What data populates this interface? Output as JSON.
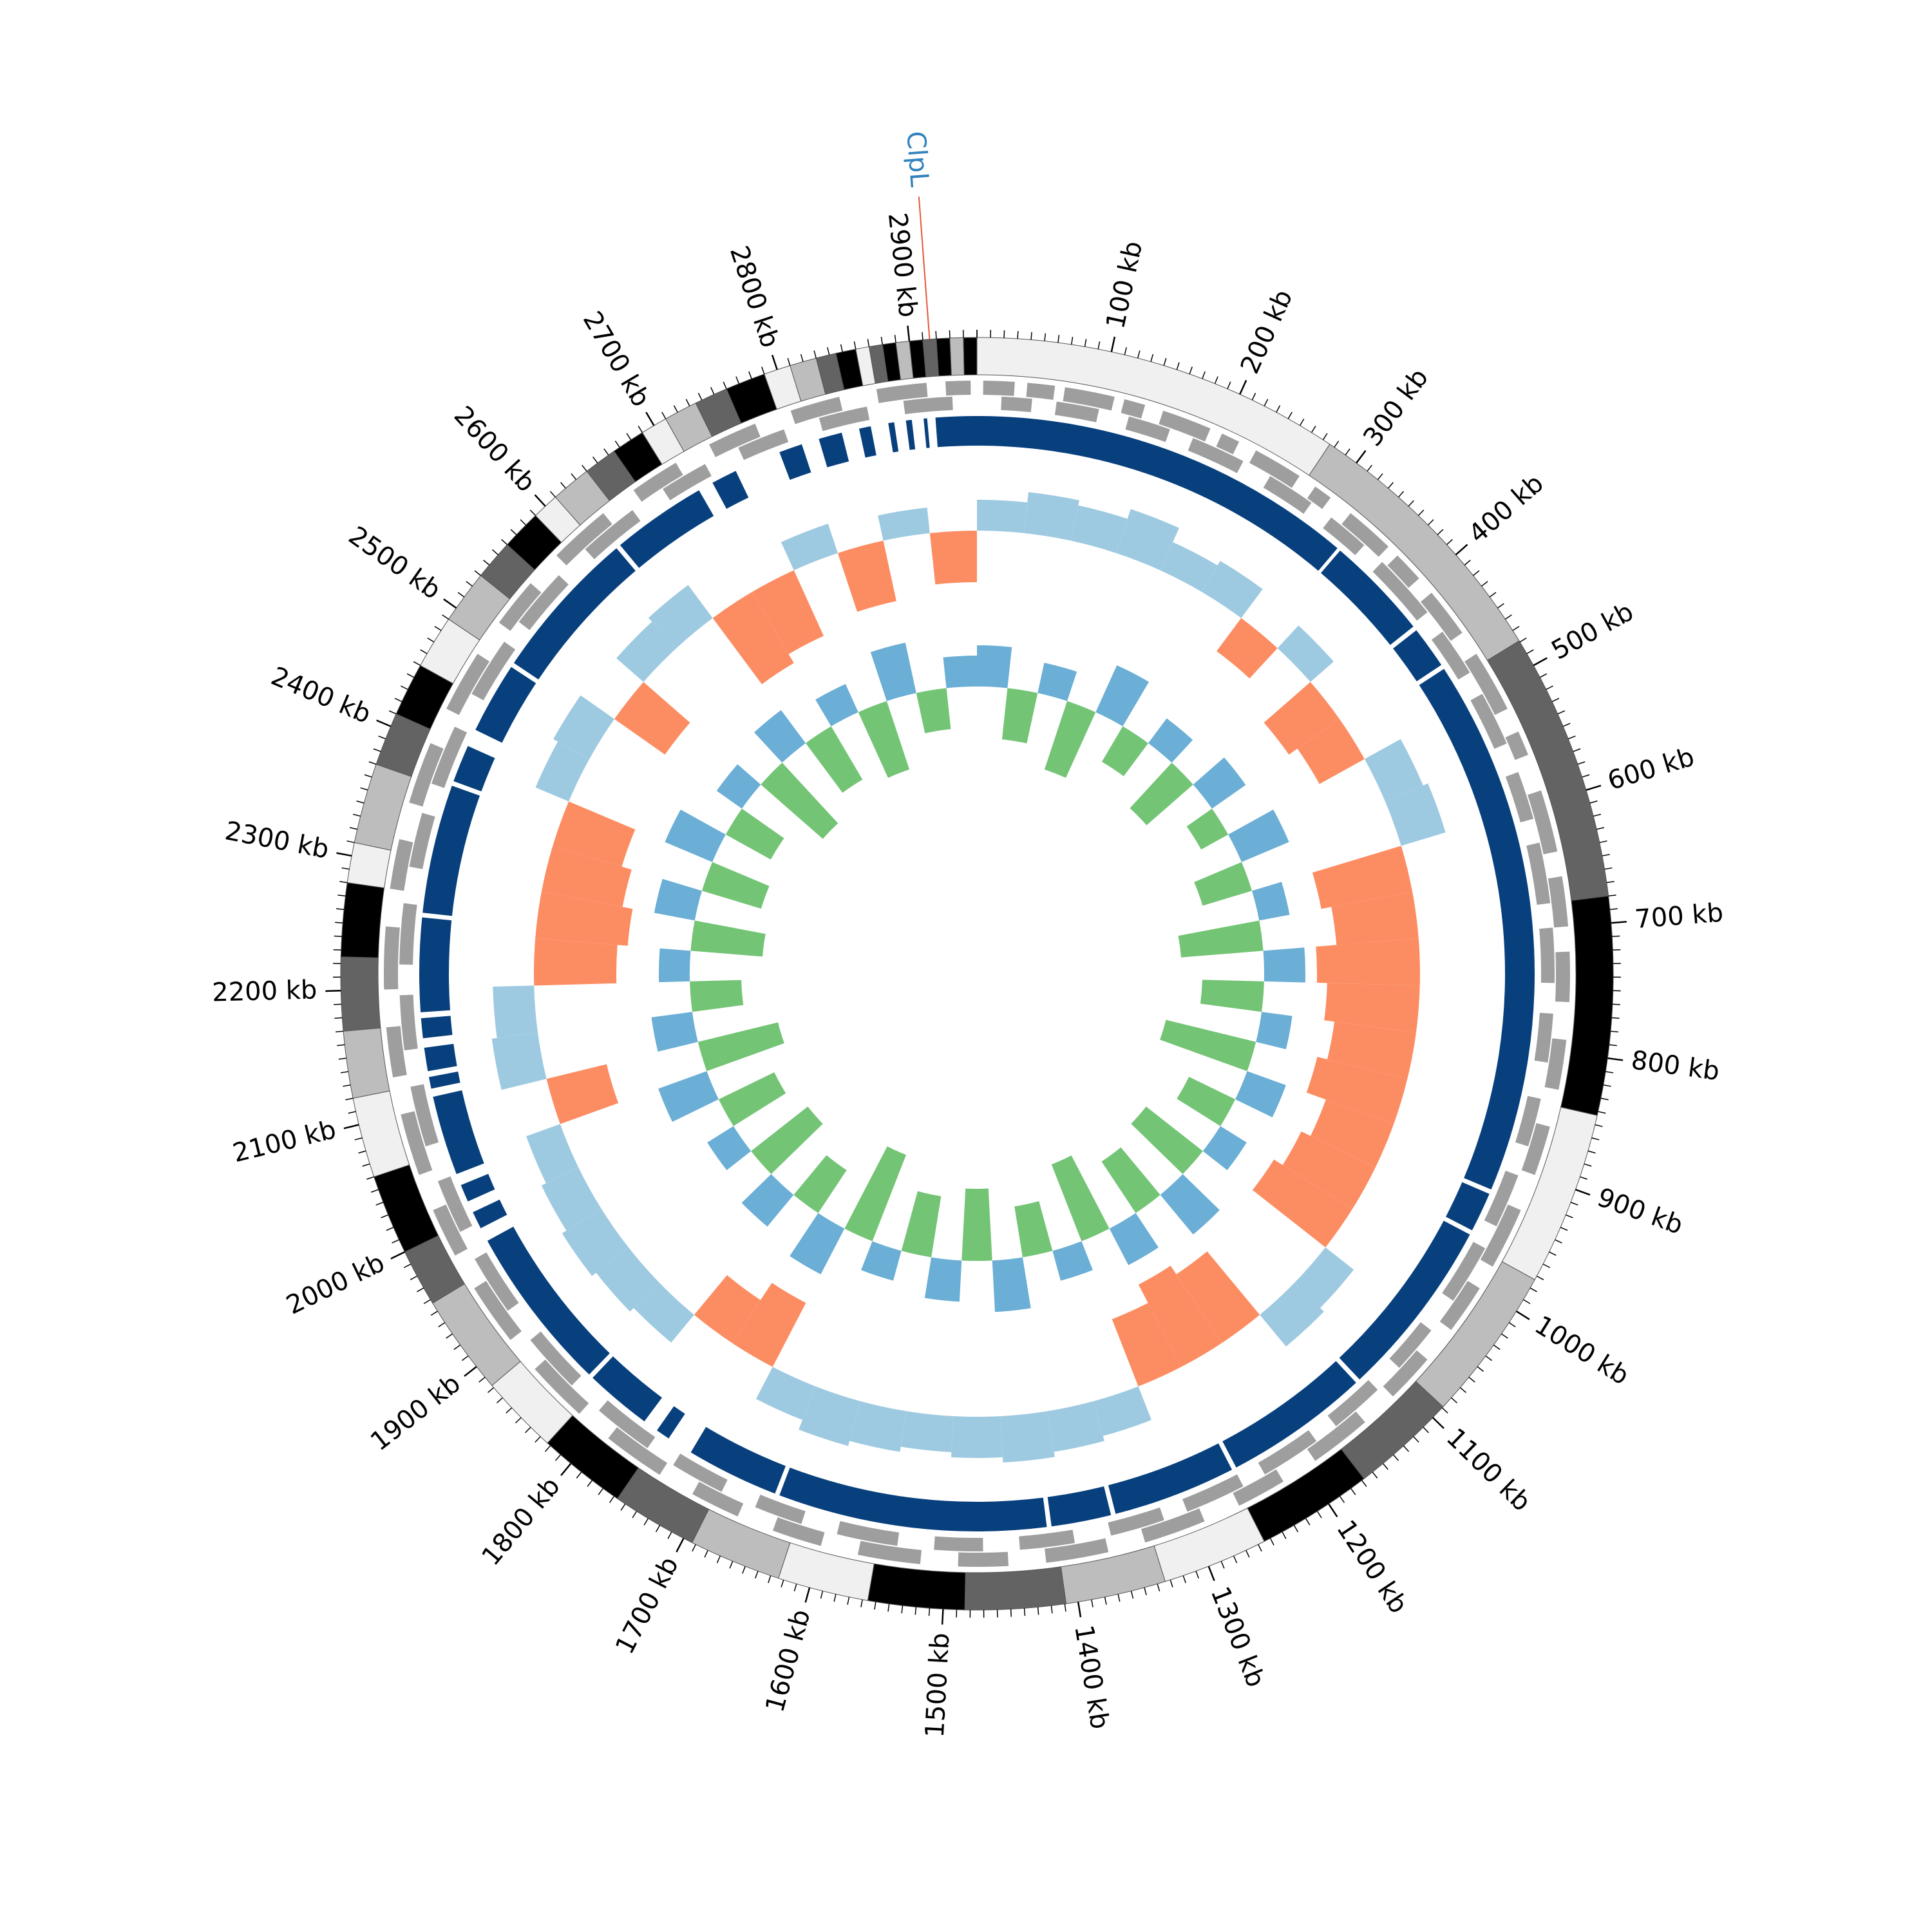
{
  "chart_data": {
    "type": "circos",
    "xlim": [
      0,
      2950
    ],
    "xticks": [
      {
        "value": 100,
        "label": "100 kb"
      },
      {
        "value": 200,
        "label": "200 kb"
      },
      {
        "value": 300,
        "label": "300 kb"
      },
      {
        "value": 400,
        "label": "400 kb"
      },
      {
        "value": 500,
        "label": "500 kb"
      },
      {
        "value": 600,
        "label": "600 kb"
      },
      {
        "value": 700,
        "label": "700 kb"
      },
      {
        "value": 800,
        "label": "800 kb"
      },
      {
        "value": 900,
        "label": "900 kb"
      },
      {
        "value": 1000,
        "label": "1000 kb"
      },
      {
        "value": 1100,
        "label": "1100 kb"
      },
      {
        "value": 1200,
        "label": "1200 kb"
      },
      {
        "value": 1300,
        "label": "1300 kb"
      },
      {
        "value": 1400,
        "label": "1400 kb"
      },
      {
        "value": 1500,
        "label": "1500 kb"
      },
      {
        "value": 1600,
        "label": "1600 kb"
      },
      {
        "value": 1700,
        "label": "1700 kb"
      },
      {
        "value": 1800,
        "label": "1800 kb"
      },
      {
        "value": 1900,
        "label": "1900 kb"
      },
      {
        "value": 2000,
        "label": "2000 kb"
      },
      {
        "value": 2100,
        "label": "2100 kb"
      },
      {
        "value": 2200,
        "label": "2200 kb"
      },
      {
        "value": 2300,
        "label": "2300 kb"
      },
      {
        "value": 2400,
        "label": "2400 kb"
      },
      {
        "value": 2500,
        "label": "2500 kb"
      },
      {
        "value": 2600,
        "label": "2600 kb"
      },
      {
        "value": 2700,
        "label": "2700 kb"
      },
      {
        "value": 2800,
        "label": "2800 kb"
      },
      {
        "value": 2900,
        "label": "2900 kb"
      }
    ],
    "minor_tick_step": 10,
    "ideogram": {
      "bands": [
        {
          "start": 0,
          "end": 276,
          "color": "#f0f0f0"
        },
        {
          "start": 276,
          "end": 479,
          "color": "#bdbdbd"
        },
        {
          "start": 479,
          "end": 680,
          "color": "#636363"
        },
        {
          "start": 680,
          "end": 843,
          "color": "#000000"
        },
        {
          "start": 843,
          "end": 973,
          "color": "#f0f0f0"
        },
        {
          "start": 973,
          "end": 1089,
          "color": "#bdbdbd"
        },
        {
          "start": 1089,
          "end": 1168,
          "color": "#636363"
        },
        {
          "start": 1168,
          "end": 1255,
          "color": "#000000"
        },
        {
          "start": 1255,
          "end": 1334,
          "color": "#f0f0f0"
        },
        {
          "start": 1334,
          "end": 1409,
          "color": "#bdbdbd"
        },
        {
          "start": 1409,
          "end": 1484,
          "color": "#636363"
        },
        {
          "start": 1484,
          "end": 1556,
          "color": "#000000"
        },
        {
          "start": 1556,
          "end": 1624,
          "color": "#f0f0f0"
        },
        {
          "start": 1624,
          "end": 1693,
          "color": "#bdbdbd"
        },
        {
          "start": 1693,
          "end": 1757,
          "color": "#636363"
        },
        {
          "start": 1757,
          "end": 1823,
          "color": "#000000"
        },
        {
          "start": 1823,
          "end": 1882,
          "color": "#f0f0f0"
        },
        {
          "start": 1882,
          "end": 1957,
          "color": "#bdbdbd"
        },
        {
          "start": 1957,
          "end": 2000,
          "color": "#636363"
        },
        {
          "start": 2000,
          "end": 2060,
          "color": "#000000"
        },
        {
          "start": 2060,
          "end": 2120,
          "color": "#f0f0f0"
        },
        {
          "start": 2120,
          "end": 2170,
          "color": "#bdbdbd"
        },
        {
          "start": 2170,
          "end": 2225,
          "color": "#636363"
        },
        {
          "start": 2225,
          "end": 2280,
          "color": "#000000"
        },
        {
          "start": 2280,
          "end": 2310,
          "color": "#f0f0f0"
        },
        {
          "start": 2310,
          "end": 2370,
          "color": "#bdbdbd"
        },
        {
          "start": 2370,
          "end": 2410,
          "color": "#636363"
        },
        {
          "start": 2410,
          "end": 2450,
          "color": "#000000"
        },
        {
          "start": 2450,
          "end": 2490,
          "color": "#f0f0f0"
        },
        {
          "start": 2490,
          "end": 2530,
          "color": "#bdbdbd"
        },
        {
          "start": 2530,
          "end": 2560,
          "color": "#636363"
        },
        {
          "start": 2560,
          "end": 2590,
          "color": "#000000"
        },
        {
          "start": 2590,
          "end": 2610,
          "color": "#f0f0f0"
        },
        {
          "start": 2610,
          "end": 2640,
          "color": "#bdbdbd"
        },
        {
          "start": 2640,
          "end": 2665,
          "color": "#636363"
        },
        {
          "start": 2665,
          "end": 2690,
          "color": "#000000"
        },
        {
          "start": 2690,
          "end": 2710,
          "color": "#f0f0f0"
        },
        {
          "start": 2710,
          "end": 2735,
          "color": "#bdbdbd"
        },
        {
          "start": 2735,
          "end": 2760,
          "color": "#636363"
        },
        {
          "start": 2760,
          "end": 2790,
          "color": "#000000"
        },
        {
          "start": 2790,
          "end": 2810,
          "color": "#f0f0f0"
        },
        {
          "start": 2810,
          "end": 2830,
          "color": "#bdbdbd"
        },
        {
          "start": 2830,
          "end": 2845,
          "color": "#636363"
        },
        {
          "start": 2845,
          "end": 2860,
          "color": "#000000"
        },
        {
          "start": 2860,
          "end": 2870,
          "color": "#f0f0f0"
        },
        {
          "start": 2870,
          "end": 2880,
          "color": "#636363"
        },
        {
          "start": 2880,
          "end": 2890,
          "color": "#000000"
        },
        {
          "start": 2890,
          "end": 2900,
          "color": "#bdbdbd"
        },
        {
          "start": 2900,
          "end": 2910,
          "color": "#000000"
        },
        {
          "start": 2910,
          "end": 2920,
          "color": "#636363"
        },
        {
          "start": 2920,
          "end": 2930,
          "color": "#000000"
        },
        {
          "start": 2930,
          "end": 2940,
          "color": "#bdbdbd"
        },
        {
          "start": 2940,
          "end": 2950,
          "color": "#000000"
        }
      ]
    },
    "genes": {
      "color": "#9e9e9e",
      "plus": [
        [
          5,
          30
        ],
        [
          40,
          62
        ],
        [
          70,
          110
        ],
        [
          118,
          135
        ],
        [
          150,
          190
        ],
        [
          200,
          215
        ],
        [
          230,
          270
        ],
        [
          285,
          300
        ],
        [
          320,
          360
        ],
        [
          370,
          395
        ],
        [
          410,
          450
        ],
        [
          470,
          520
        ],
        [
          540,
          560
        ],
        [
          590,
          640
        ],
        [
          660,
          700
        ],
        [
          720,
          760
        ],
        [
          790,
          830
        ],
        [
          860,
          900
        ],
        [
          930,
          980
        ],
        [
          1000,
          1040
        ],
        [
          1070,
          1110
        ],
        [
          1140,
          1190
        ],
        [
          1220,
          1260
        ],
        [
          1290,
          1340
        ],
        [
          1370,
          1420
        ],
        [
          1450,
          1490
        ],
        [
          1520,
          1570
        ],
        [
          1600,
          1640
        ],
        [
          1670,
          1710
        ],
        [
          1740,
          1790
        ],
        [
          1820,
          1870
        ],
        [
          1900,
          1950
        ],
        [
          1980,
          2020
        ],
        [
          2050,
          2100
        ],
        [
          2130,
          2170
        ],
        [
          2200,
          2250
        ],
        [
          2280,
          2320
        ],
        [
          2350,
          2400
        ],
        [
          2430,
          2480
        ],
        [
          2510,
          2550
        ],
        [
          2580,
          2630
        ],
        [
          2660,
          2700
        ],
        [
          2730,
          2770
        ],
        [
          2800,
          2840
        ],
        [
          2870,
          2910
        ],
        [
          2925,
          2945
        ]
      ],
      "minus": [
        [
          20,
          45
        ],
        [
          65,
          100
        ],
        [
          125,
          160
        ],
        [
          180,
          225
        ],
        [
          250,
          290
        ],
        [
          310,
          345
        ],
        [
          365,
          420
        ],
        [
          440,
          480
        ],
        [
          500,
          545
        ],
        [
          570,
          610
        ],
        [
          630,
          680
        ],
        [
          700,
          745
        ],
        [
          770,
          810
        ],
        [
          840,
          880
        ],
        [
          905,
          950
        ],
        [
          970,
          1020
        ],
        [
          1050,
          1090
        ],
        [
          1115,
          1160
        ],
        [
          1180,
          1230
        ],
        [
          1250,
          1300
        ],
        [
          1320,
          1365
        ],
        [
          1395,
          1440
        ],
        [
          1470,
          1510
        ],
        [
          1540,
          1590
        ],
        [
          1620,
          1660
        ],
        [
          1690,
          1735
        ],
        [
          1760,
          1810
        ],
        [
          1840,
          1890
        ],
        [
          1920,
          1970
        ],
        [
          1995,
          2040
        ],
        [
          2070,
          2120
        ],
        [
          2150,
          2195
        ],
        [
          2220,
          2270
        ],
        [
          2300,
          2345
        ],
        [
          2370,
          2420
        ],
        [
          2450,
          2500
        ],
        [
          2520,
          2570
        ],
        [
          2600,
          2650
        ],
        [
          2680,
          2720
        ],
        [
          2750,
          2790
        ],
        [
          2820,
          2860
        ],
        [
          2890,
          2930
        ]
      ]
    },
    "blocks": {
      "color": "#08407e",
      "segments": [
        [
          0,
          330
        ],
        [
          333,
          422
        ],
        [
          426,
          462
        ],
        [
          466,
          924
        ],
        [
          928,
          962
        ],
        [
          966,
          1120
        ],
        [
          1124,
          1248
        ],
        [
          1252,
          1357
        ],
        [
          1361,
          1412
        ],
        [
          1416,
          1645
        ],
        [
          1649,
          1728
        ],
        [
          1750,
          1762
        ],
        [
          1775,
          1832
        ],
        [
          1836,
          1978
        ],
        [
          1990,
          2005
        ],
        [
          2015,
          2030
        ],
        [
          2040,
          2108
        ],
        [
          2115,
          2125
        ],
        [
          2130,
          2150
        ],
        [
          2158,
          2175
        ],
        [
          2180,
          2260
        ],
        [
          2264,
          2374
        ],
        [
          2378,
          2410
        ],
        [
          2425,
          2486
        ],
        [
          2490,
          2620
        ],
        [
          2624,
          2705
        ],
        [
          2718,
          2740
        ],
        [
          2780,
          2800
        ],
        [
          2815,
          2835
        ],
        [
          2850,
          2860
        ],
        [
          2875,
          2880
        ],
        [
          2890,
          2895
        ],
        [
          2905,
          2908
        ],
        [
          2915,
          2950
        ]
      ]
    },
    "x": [
      0,
      50,
      100,
      150,
      200,
      250,
      300,
      350,
      400,
      450,
      500,
      550,
      600,
      650,
      700,
      750,
      800,
      850,
      900,
      950,
      1000,
      1050,
      1100,
      1150,
      1200,
      1250,
      1300,
      1350,
      1400,
      1450,
      1500,
      1550,
      1600,
      1650,
      1700,
      1750,
      1800,
      1850,
      1900,
      1950,
      2000,
      2050,
      2100,
      2150,
      2200,
      2250,
      2300,
      2350,
      2400,
      2450,
      2500,
      2550,
      2600,
      2650,
      2700,
      2750,
      2800,
      2850,
      2900
    ],
    "rlim": [
      -1,
      1
    ],
    "series": [
      {
        "positive_color": "#9ecae1",
        "negative_color": "#fc8d62",
        "values": [
          0.3,
          0.4,
          0.35,
          0.45,
          0.3,
          0.35,
          -0.4,
          0.3,
          -0.6,
          -0.5,
          0.4,
          0.45,
          -0.9,
          -0.8,
          -1.0,
          -0.9,
          -0.8,
          -0.9,
          -0.7,
          -0.8,
          -0.9,
          0.35,
          0.4,
          -0.8,
          -0.9,
          -0.7,
          0.35,
          0.4,
          0.45,
          0.4,
          0.35,
          0.4,
          0.45,
          0.35,
          -0.7,
          -0.5,
          0.35,
          0.4,
          0.45,
          0.4,
          0.35,
          -0.6,
          0.45,
          0.4,
          -0.8,
          -0.9,
          -0.8,
          -0.7,
          0.35,
          0.4,
          -0.6,
          0.35,
          0.4,
          -0.8,
          -0.7,
          0.3,
          -0.6,
          0.25,
          -0.5
        ]
      },
      {
        "positive_color": "#6baed6",
        "negative_color": "#74c476",
        "values": [
          0.4,
          -0.5,
          0.3,
          -0.7,
          0.5,
          -0.4,
          0.3,
          -0.6,
          0.4,
          -0.3,
          0.5,
          -0.5,
          0.3,
          -0.8,
          0.4,
          -0.6,
          0.3,
          -0.9,
          0.4,
          -0.5,
          0.3,
          -0.7,
          0.5,
          -0.6,
          0.4,
          -0.8,
          0.3,
          -0.5,
          0.5,
          -0.7,
          0.4,
          -0.6,
          0.3,
          -0.9,
          0.5,
          -0.5,
          0.4,
          -0.7,
          0.3,
          -0.6,
          0.5,
          -0.8,
          0.4,
          -0.5,
          0.3,
          -0.7,
          0.4,
          -0.6,
          0.5,
          -0.5,
          0.3,
          -0.8,
          0.4,
          -0.6,
          0.3,
          -0.7,
          0.5,
          -0.4,
          0.3
        ]
      }
    ],
    "annotation": {
      "label": "ClpL",
      "position": 2915,
      "color": "#3182bd",
      "line_color": "#e6553a"
    }
  }
}
